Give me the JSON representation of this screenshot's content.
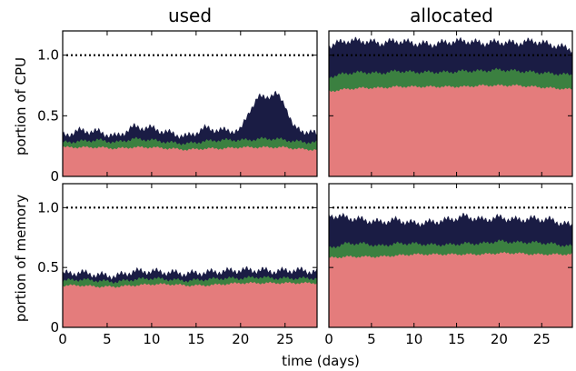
{
  "chart_data": [
    {
      "type": "area",
      "title": "used",
      "ylabel": "portion of CPU",
      "xlabel": "",
      "xlim": [
        0,
        28.6
      ],
      "ylim": [
        0,
        1.2
      ],
      "yticks": [
        0,
        0.5,
        1.0
      ],
      "ytick_labels": [
        "0",
        "0.5",
        "1.0"
      ],
      "xticks": [
        0,
        5,
        10,
        15,
        20,
        25
      ],
      "xtick_labels": [
        "",
        "",
        "",
        "",
        "",
        ""
      ],
      "reference_line": 1.0,
      "x": [
        0,
        2,
        4,
        6,
        8,
        10,
        12,
        14,
        16,
        18,
        20,
        21,
        22,
        24,
        25,
        26,
        28,
        28.6
      ],
      "series": [
        {
          "name": "",
          "color": "#e47c7c",
          "values": [
            0.24,
            0.24,
            0.24,
            0.23,
            0.24,
            0.24,
            0.23,
            0.22,
            0.23,
            0.23,
            0.24,
            0.24,
            0.24,
            0.24,
            0.24,
            0.23,
            0.22,
            0.22
          ]
        },
        {
          "name": "",
          "color": "#3b8040",
          "values": [
            0.28,
            0.29,
            0.3,
            0.28,
            0.31,
            0.3,
            0.28,
            0.27,
            0.29,
            0.3,
            0.3,
            0.3,
            0.31,
            0.31,
            0.3,
            0.29,
            0.28,
            0.28
          ]
        },
        {
          "name": "",
          "color": "#1a1c44",
          "values": [
            0.34,
            0.38,
            0.37,
            0.33,
            0.41,
            0.4,
            0.36,
            0.33,
            0.4,
            0.38,
            0.38,
            0.55,
            0.65,
            0.68,
            0.6,
            0.4,
            0.36,
            0.35
          ]
        }
      ]
    },
    {
      "type": "area",
      "title": "allocated",
      "ylabel": "",
      "xlabel": "",
      "xlim": [
        0,
        28.6
      ],
      "ylim": [
        0,
        1.2
      ],
      "yticks": [
        0,
        0.5,
        1.0
      ],
      "ytick_labels": [
        "",
        "",
        ""
      ],
      "xticks": [
        0,
        5,
        10,
        15,
        20,
        25
      ],
      "xtick_labels": [
        "",
        "",
        "",
        "",
        "",
        ""
      ],
      "reference_line": 1.0,
      "x": [
        0,
        2,
        4,
        6,
        8,
        10,
        12,
        14,
        16,
        18,
        20,
        22,
        24,
        26,
        28,
        28.6
      ],
      "series": [
        {
          "name": "",
          "color": "#e47c7c",
          "values": [
            0.7,
            0.72,
            0.73,
            0.73,
            0.74,
            0.74,
            0.74,
            0.74,
            0.74,
            0.75,
            0.75,
            0.75,
            0.74,
            0.73,
            0.72,
            0.72
          ]
        },
        {
          "name": "",
          "color": "#3b8040",
          "values": [
            0.82,
            0.85,
            0.86,
            0.85,
            0.87,
            0.86,
            0.86,
            0.86,
            0.87,
            0.87,
            0.88,
            0.87,
            0.86,
            0.85,
            0.84,
            0.84
          ]
        },
        {
          "name": "",
          "color": "#1a1c44",
          "values": [
            1.08,
            1.12,
            1.12,
            1.1,
            1.12,
            1.1,
            1.09,
            1.11,
            1.12,
            1.1,
            1.11,
            1.1,
            1.12,
            1.09,
            1.06,
            1.05
          ]
        }
      ]
    },
    {
      "type": "area",
      "title": "",
      "ylabel": "portion of memory",
      "xlabel": "",
      "xlim": [
        0,
        28.6
      ],
      "ylim": [
        0,
        1.2
      ],
      "yticks": [
        0,
        0.5,
        1.0
      ],
      "ytick_labels": [
        "0",
        "0.5",
        "1.0"
      ],
      "xticks": [
        0,
        5,
        10,
        15,
        20,
        25
      ],
      "xtick_labels": [
        "0",
        "5",
        "10",
        "15",
        "20",
        "25"
      ],
      "reference_line": 1.0,
      "x": [
        0,
        2,
        4,
        6,
        8,
        10,
        12,
        14,
        16,
        18,
        20,
        22,
        24,
        26,
        28,
        28.6
      ],
      "series": [
        {
          "name": "",
          "color": "#e47c7c",
          "values": [
            0.35,
            0.35,
            0.34,
            0.34,
            0.35,
            0.36,
            0.36,
            0.35,
            0.35,
            0.36,
            0.37,
            0.37,
            0.37,
            0.37,
            0.37,
            0.37
          ]
        },
        {
          "name": "",
          "color": "#3b8040",
          "values": [
            0.39,
            0.4,
            0.39,
            0.38,
            0.4,
            0.41,
            0.4,
            0.39,
            0.4,
            0.41,
            0.41,
            0.42,
            0.41,
            0.41,
            0.41,
            0.41
          ]
        },
        {
          "name": "",
          "color": "#1a1c44",
          "values": [
            0.45,
            0.46,
            0.44,
            0.43,
            0.47,
            0.47,
            0.46,
            0.45,
            0.46,
            0.47,
            0.48,
            0.48,
            0.47,
            0.48,
            0.47,
            0.47
          ]
        }
      ]
    },
    {
      "type": "area",
      "title": "",
      "ylabel": "",
      "xlabel": "time (days)",
      "xlim": [
        0,
        28.6
      ],
      "ylim": [
        0,
        1.2
      ],
      "yticks": [
        0,
        0.5,
        1.0
      ],
      "ytick_labels": [
        "",
        "",
        ""
      ],
      "xticks": [
        0,
        5,
        10,
        15,
        20,
        25
      ],
      "xtick_labels": [
        "0",
        "5",
        "10",
        "15",
        "20",
        "25"
      ],
      "reference_line": 1.0,
      "x": [
        0,
        2,
        4,
        6,
        8,
        10,
        12,
        14,
        16,
        18,
        20,
        22,
        24,
        26,
        28,
        28.6
      ],
      "series": [
        {
          "name": "",
          "color": "#e47c7c",
          "values": [
            0.58,
            0.59,
            0.59,
            0.59,
            0.6,
            0.61,
            0.61,
            0.61,
            0.61,
            0.61,
            0.62,
            0.62,
            0.61,
            0.61,
            0.61,
            0.61
          ]
        },
        {
          "name": "",
          "color": "#3b8040",
          "values": [
            0.66,
            0.7,
            0.7,
            0.68,
            0.7,
            0.7,
            0.69,
            0.69,
            0.7,
            0.7,
            0.72,
            0.71,
            0.71,
            0.7,
            0.68,
            0.68
          ]
        },
        {
          "name": "",
          "color": "#1a1c44",
          "values": [
            0.94,
            0.92,
            0.9,
            0.88,
            0.9,
            0.87,
            0.88,
            0.9,
            0.93,
            0.9,
            0.92,
            0.9,
            0.91,
            0.9,
            0.86,
            0.85
          ]
        }
      ]
    }
  ]
}
